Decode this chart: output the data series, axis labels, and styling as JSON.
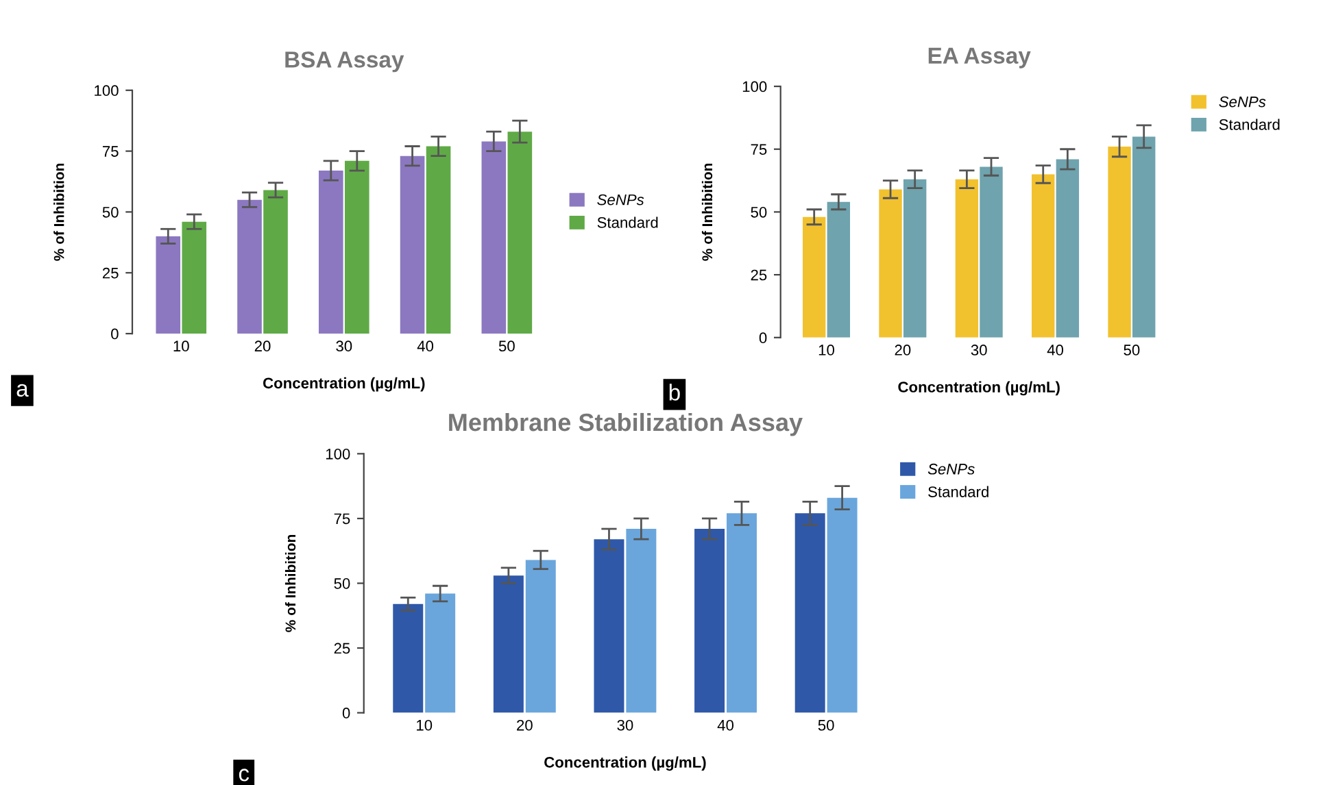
{
  "chart_data": [
    {
      "type": "bar",
      "title": "BSA Assay",
      "xlabel": "Concentration (µg/mL)",
      "ylabel": "% of Inhibition",
      "categories": [
        "10",
        "20",
        "30",
        "40",
        "50"
      ],
      "ylim": [
        0,
        100
      ],
      "yticks": [
        0,
        25,
        50,
        75,
        100
      ],
      "grid": false,
      "legend": "right",
      "annotations": [
        "a"
      ],
      "series": [
        {
          "name": "SeNPs",
          "color": "#8c78c0",
          "values": [
            40,
            55,
            67,
            73,
            79
          ],
          "errors": [
            3,
            3,
            4,
            4,
            4
          ]
        },
        {
          "name": "Standard",
          "color": "#5faa46",
          "values": [
            46,
            59,
            71,
            77,
            83
          ],
          "errors": [
            3,
            3,
            4,
            4,
            4.5
          ]
        }
      ]
    },
    {
      "type": "bar",
      "title": "EA Assay",
      "xlabel": "Concentration (µg/mL)",
      "ylabel": "% of Inhibition",
      "categories": [
        "10",
        "20",
        "30",
        "40",
        "50"
      ],
      "ylim": [
        0,
        100
      ],
      "yticks": [
        0,
        25,
        50,
        75,
        100
      ],
      "grid": false,
      "legend": "top right",
      "annotations": [
        "b"
      ],
      "series": [
        {
          "name": "SeNPs",
          "color": "#f2c12e",
          "values": [
            48,
            59,
            63,
            65,
            76
          ],
          "errors": [
            3,
            3.5,
            3.5,
            3.5,
            4
          ]
        },
        {
          "name": "Standard",
          "color": "#6fa3ae",
          "values": [
            54,
            63,
            68,
            71,
            80
          ],
          "errors": [
            3,
            3.5,
            3.5,
            4,
            4.5
          ]
        }
      ]
    },
    {
      "type": "bar",
      "title": "Membrane Stabilization Assay",
      "xlabel": "Concentration (µg/mL)",
      "ylabel": "% of Inhibition",
      "categories": [
        "10",
        "20",
        "30",
        "40",
        "50"
      ],
      "ylim": [
        0,
        100
      ],
      "yticks": [
        0,
        25,
        50,
        75,
        100
      ],
      "grid": false,
      "legend": "top right",
      "annotations": [
        "c"
      ],
      "series": [
        {
          "name": "SeNPs",
          "color": "#2f58a8",
          "values": [
            42,
            53,
            67,
            71,
            77
          ],
          "errors": [
            2.5,
            3,
            4,
            4,
            4.5
          ]
        },
        {
          "name": "Standard",
          "color": "#6aa6dc",
          "values": [
            46,
            59,
            71,
            77,
            83
          ],
          "errors": [
            3,
            3.5,
            4,
            4.5,
            4.5
          ]
        }
      ]
    }
  ]
}
